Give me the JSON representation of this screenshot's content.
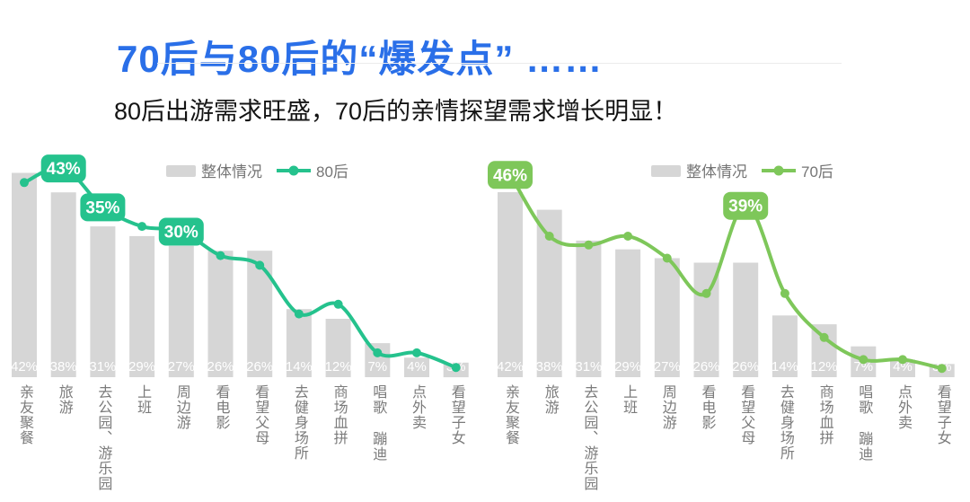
{
  "header": {
    "title": "70后与80后的“爆发点” ……",
    "subtitle": "80后出游需求旺盛，70后的亲情探望需求增长明显！",
    "title_color": "#2a6fe8",
    "subtitle_color": "#141414"
  },
  "chart_data": [
    {
      "type": "bar",
      "combo": "bar+line",
      "legend": [
        "整体情况",
        "80后"
      ],
      "legend_position": "top-center",
      "grid": false,
      "ylim": [
        0,
        48
      ],
      "axis_text_color": "#7b7b7b",
      "legend_text_color": "#757575",
      "categories": [
        "亲友聚餐",
        "旅游",
        "去公园、游乐园",
        "上班",
        "周边游",
        "看电影",
        "看望父母",
        "去健身场所",
        "商场血拼",
        "唱歌 蹦迪",
        "点外卖",
        "看望子女"
      ],
      "series": [
        {
          "name": "整体情况",
          "type": "bar",
          "color": "#d6d6d6",
          "label_color": "#ffffff",
          "values": [
            42,
            38,
            31,
            29,
            27,
            26,
            26,
            14,
            12,
            7,
            4,
            3
          ],
          "labels": [
            "42%",
            "38%",
            "31%",
            "29%",
            "27%",
            "26%",
            "26%",
            "14%",
            "12%",
            "7%",
            "4%",
            "3%"
          ]
        },
        {
          "name": "80后",
          "type": "line",
          "color": "#25c28d",
          "values": [
            40,
            43,
            35,
            31,
            30,
            25,
            23,
            13,
            15,
            5,
            5,
            2
          ],
          "callouts": [
            {
              "index": 1,
              "text": "43%"
            },
            {
              "index": 2,
              "text": "35%"
            },
            {
              "index": 4,
              "text": "30%"
            }
          ]
        }
      ]
    },
    {
      "type": "bar",
      "combo": "bar+line",
      "legend": [
        "整体情况",
        "70后"
      ],
      "legend_position": "top-center",
      "grid": false,
      "ylim": [
        0,
        53
      ],
      "axis_text_color": "#7b7b7b",
      "legend_text_color": "#757575",
      "categories": [
        "亲友聚餐",
        "旅游",
        "去公园、游乐园",
        "上班",
        "周边游",
        "看电影",
        "看望父母",
        "去健身场所",
        "商场血拼",
        "唱歌 蹦迪",
        "点外卖",
        "看望子女"
      ],
      "series": [
        {
          "name": "整体情况",
          "type": "bar",
          "color": "#d6d6d6",
          "label_color": "#ffffff",
          "values": [
            42,
            38,
            31,
            29,
            27,
            26,
            26,
            14,
            12,
            7,
            4,
            3
          ],
          "labels": [
            "42%",
            "38%",
            "31%",
            "29%",
            "27%",
            "26%",
            "26%",
            "14%",
            "12%",
            "7%",
            "4%",
            "3%"
          ]
        },
        {
          "name": "70后",
          "type": "line",
          "color": "#7ec75a",
          "values": [
            46,
            32,
            30,
            32,
            27,
            19,
            39,
            19,
            9,
            4,
            4,
            2
          ],
          "callouts": [
            {
              "index": 0,
              "text": "46%"
            },
            {
              "index": 6,
              "text": "39%"
            }
          ]
        }
      ]
    }
  ]
}
